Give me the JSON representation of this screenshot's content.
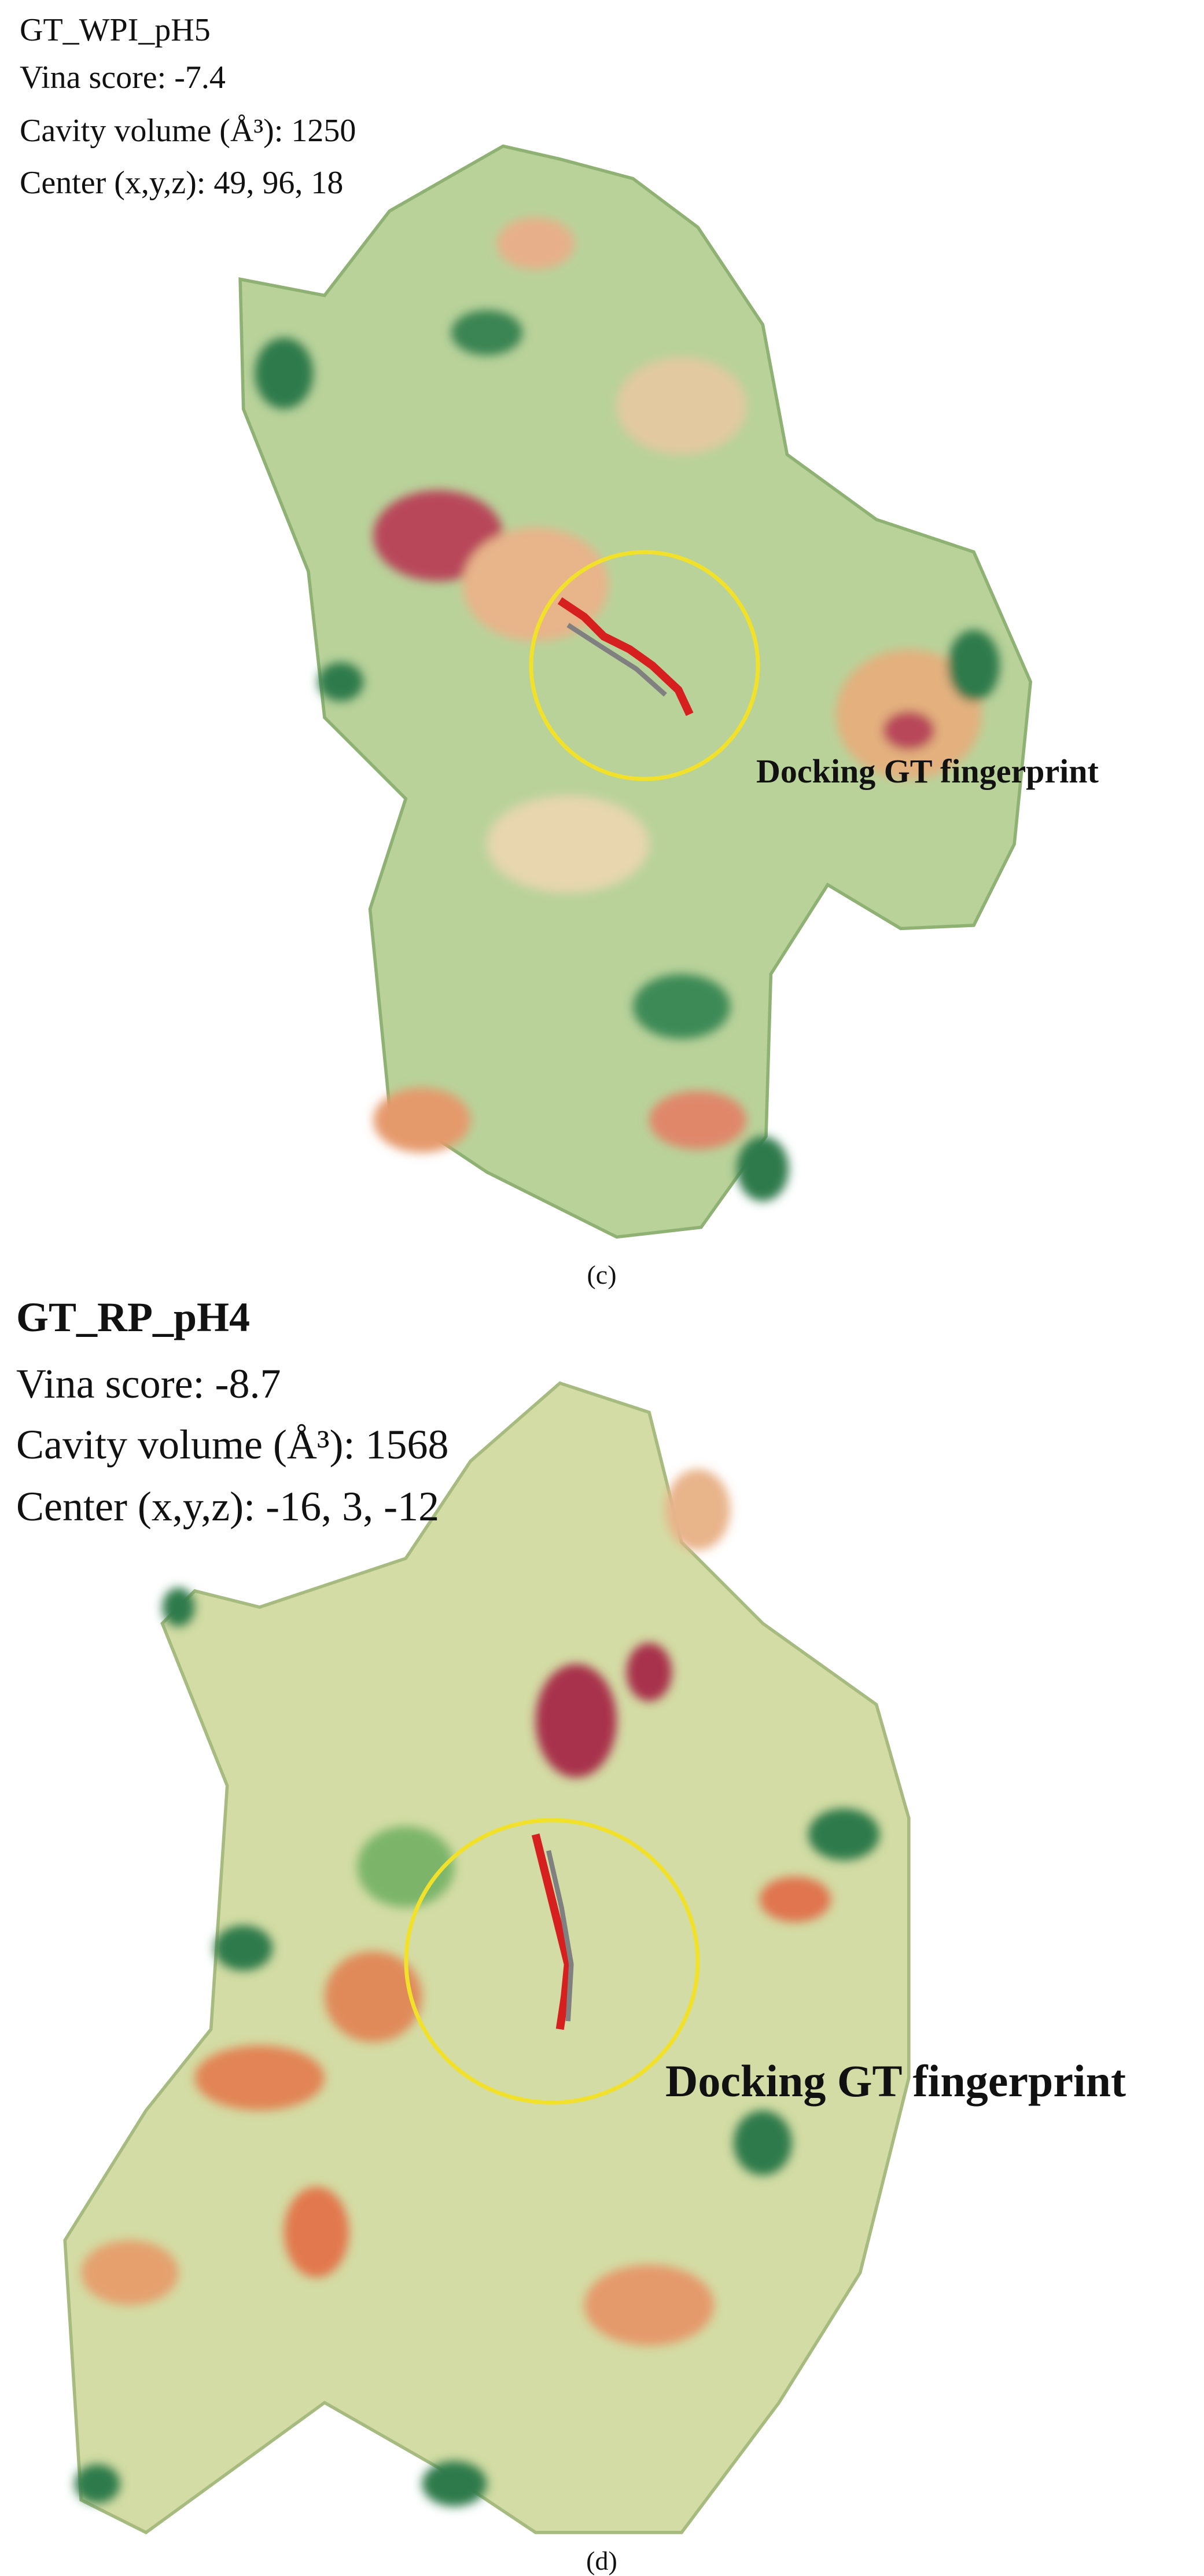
{
  "panels": [
    {
      "title": "GT_WPI_pH5",
      "vina": "Vina score: -7.4",
      "cavity": "Cavity volume (Å³): 1250",
      "center": "Center (x,y,z): 49, 96, 18",
      "annotation": "Docking GT fingerprint",
      "caption": "(c)"
    },
    {
      "title": "GT_RP_pH4",
      "vina": "Vina score: -8.7",
      "cavity": "Cavity volume (Å³): 1568",
      "center": "Center (x,y,z): -16, 3, -12",
      "annotation": "Docking GT fingerprint",
      "caption": "(d)"
    }
  ]
}
